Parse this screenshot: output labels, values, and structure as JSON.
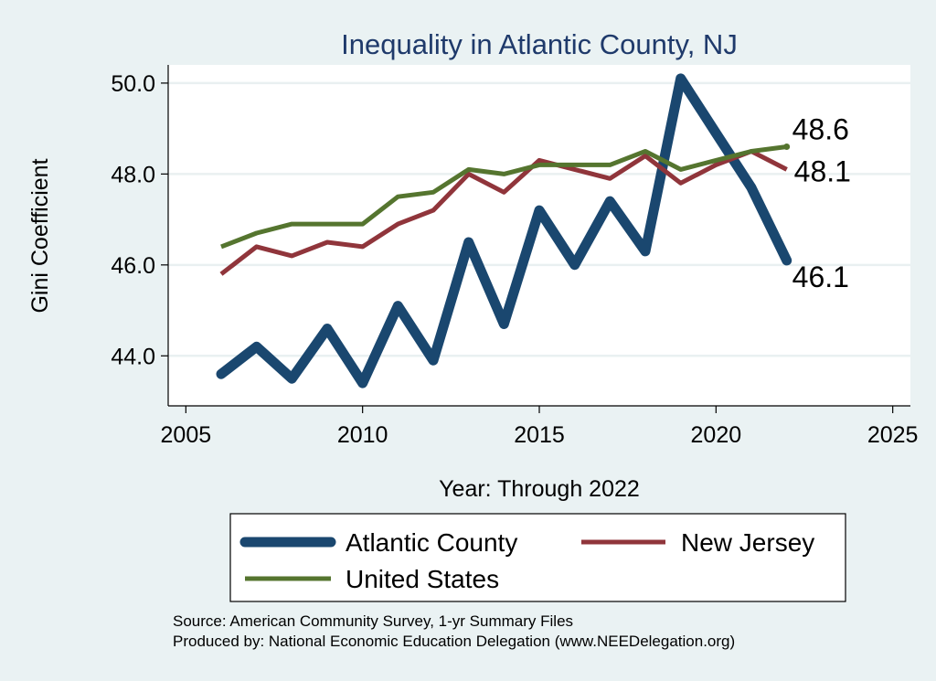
{
  "chart_data": {
    "type": "line",
    "title": "Inequality in Atlantic County, NJ",
    "xlabel": "Year: Through 2022",
    "ylabel": "Gini Coefficient",
    "xlim": [
      2004.5,
      2025.5
    ],
    "ylim": [
      42.9,
      50.4
    ],
    "xticks": [
      "2005",
      "2010",
      "2015",
      "2020",
      "2025"
    ],
    "yticks": [
      "44.0",
      "46.0",
      "48.0",
      "50.0"
    ],
    "grid": true,
    "legend_position": "bottom",
    "x": [
      2006,
      2007,
      2008,
      2009,
      2010,
      2011,
      2012,
      2013,
      2014,
      2015,
      2016,
      2017,
      2018,
      2019,
      2020,
      2021,
      2022
    ],
    "series": [
      {
        "name": "Atlantic County",
        "color": "#1a476f",
        "values": [
          43.6,
          44.2,
          43.5,
          44.6,
          43.4,
          45.1,
          43.9,
          46.5,
          44.7,
          47.2,
          46.0,
          47.4,
          46.3,
          50.1,
          48.9,
          47.7,
          46.1
        ],
        "end_label": "46.1"
      },
      {
        "name": "New Jersey",
        "color": "#90353b",
        "values": [
          45.8,
          46.4,
          46.2,
          46.5,
          46.4,
          46.9,
          47.2,
          48.0,
          47.6,
          48.3,
          48.1,
          47.9,
          48.4,
          47.8,
          48.2,
          48.5,
          48.1
        ],
        "end_label": "48.1"
      },
      {
        "name": "United States",
        "color": "#55752f",
        "values": [
          46.4,
          46.7,
          46.9,
          46.9,
          46.9,
          47.5,
          47.6,
          48.1,
          48.0,
          48.2,
          48.2,
          48.2,
          48.5,
          48.1,
          48.3,
          48.5,
          48.6
        ],
        "end_label": "48.6"
      }
    ],
    "notes": [
      "Source: American Community Survey, 1-yr Summary Files",
      "Produced by: National Economic Education Delegation (www.NEEDelegation.org)"
    ]
  }
}
